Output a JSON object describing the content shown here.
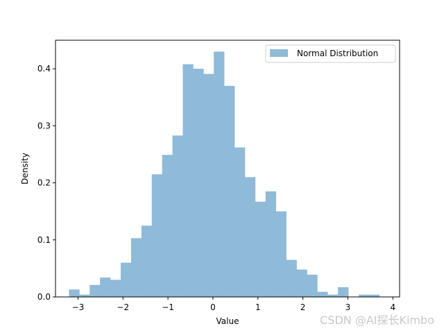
{
  "chart_data": {
    "type": "bar",
    "title": "",
    "xlabel": "Value",
    "ylabel": "Density",
    "xlim": [
      -3.5,
      4.15
    ],
    "ylim": [
      0,
      0.45
    ],
    "xticks": [
      -3,
      -2,
      -1,
      0,
      1,
      2,
      3,
      4
    ],
    "xtick_labels": [
      "−3",
      "−2",
      "−1",
      "0",
      "1",
      "2",
      "3",
      "4"
    ],
    "yticks": [
      0.0,
      0.1,
      0.2,
      0.3,
      0.4
    ],
    "ytick_labels": [
      "0.0",
      "0.1",
      "0.2",
      "0.3",
      "0.4"
    ],
    "bar_color": "#8fbad8",
    "legend_placement": "top-right",
    "grid": false,
    "series": [
      {
        "name": "Normal Distribution",
        "bin_edges": [
          -3.2,
          -2.97,
          -2.74,
          -2.51,
          -2.28,
          -2.05,
          -1.82,
          -1.59,
          -1.36,
          -1.13,
          -0.9,
          -0.67,
          -0.44,
          -0.21,
          0.02,
          0.25,
          0.48,
          0.71,
          0.94,
          1.17,
          1.4,
          1.63,
          1.86,
          2.09,
          2.32,
          2.55,
          2.78,
          3.01,
          3.24,
          3.47,
          3.7,
          3.93
        ],
        "values": [
          0.013,
          0.004,
          0.021,
          0.034,
          0.03,
          0.06,
          0.103,
          0.125,
          0.215,
          0.249,
          0.283,
          0.408,
          0.4,
          0.391,
          0.43,
          0.37,
          0.262,
          0.21,
          0.167,
          0.185,
          0.15,
          0.065,
          0.048,
          0.039,
          0.009,
          0.004,
          0.017,
          0.0,
          0.004,
          0.004,
          0.0
        ]
      }
    ]
  },
  "watermark": "CSDN @AI探长Kimbo"
}
